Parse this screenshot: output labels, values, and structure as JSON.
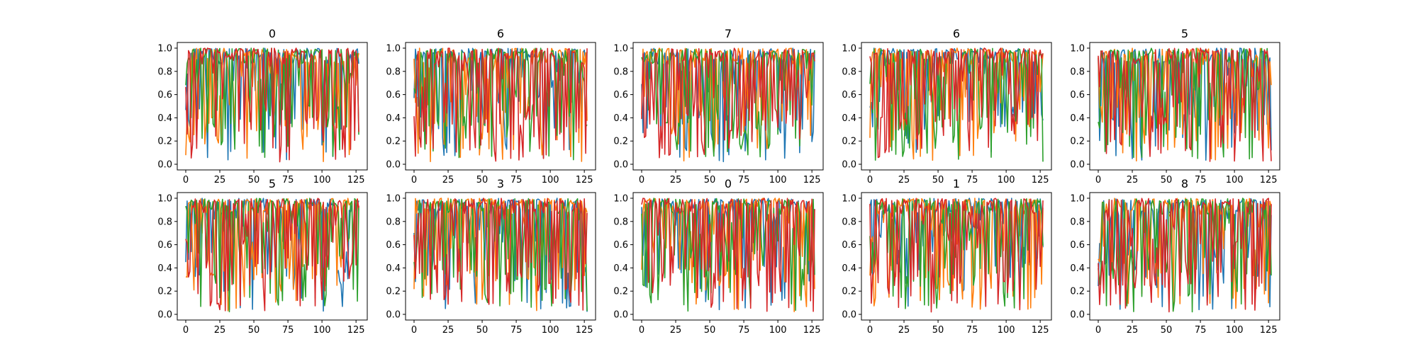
{
  "figure": {
    "layout": {
      "rows": 2,
      "cols": 5
    },
    "colors": [
      "#1f77b4",
      "#ff7f0e",
      "#2ca02c",
      "#d62728"
    ]
  },
  "chart_data": [
    {
      "type": "line",
      "title": "0",
      "xlim": [
        0,
        127
      ],
      "ylim": [
        0,
        1
      ],
      "xticks": [
        0,
        25,
        50,
        75,
        100,
        125
      ],
      "yticks": [
        0.0,
        0.2,
        0.4,
        0.6,
        0.8,
        1.0
      ],
      "grid": false,
      "seed": 11
    },
    {
      "type": "line",
      "title": "6",
      "xlim": [
        0,
        127
      ],
      "ylim": [
        0,
        1
      ],
      "xticks": [
        0,
        25,
        50,
        75,
        100,
        125
      ],
      "yticks": [
        0.0,
        0.2,
        0.4,
        0.6,
        0.8,
        1.0
      ],
      "grid": false,
      "seed": 23
    },
    {
      "type": "line",
      "title": "7",
      "xlim": [
        0,
        127
      ],
      "ylim": [
        0,
        1
      ],
      "xticks": [
        0,
        25,
        50,
        75,
        100,
        125
      ],
      "yticks": [
        0.0,
        0.2,
        0.4,
        0.6,
        0.8,
        1.0
      ],
      "grid": false,
      "seed": 37
    },
    {
      "type": "line",
      "title": "6",
      "xlim": [
        0,
        127
      ],
      "ylim": [
        0,
        1
      ],
      "xticks": [
        0,
        25,
        50,
        75,
        100,
        125
      ],
      "yticks": [
        0.0,
        0.2,
        0.4,
        0.6,
        0.8,
        1.0
      ],
      "grid": false,
      "seed": 41
    },
    {
      "type": "line",
      "title": "5",
      "xlim": [
        0,
        127
      ],
      "ylim": [
        0,
        1
      ],
      "xticks": [
        0,
        25,
        50,
        75,
        100,
        125
      ],
      "yticks": [
        0.0,
        0.2,
        0.4,
        0.6,
        0.8,
        1.0
      ],
      "grid": false,
      "seed": 53
    },
    {
      "type": "line",
      "title": "5",
      "xlim": [
        0,
        127
      ],
      "ylim": [
        0,
        1
      ],
      "xticks": [
        0,
        25,
        50,
        75,
        100,
        125
      ],
      "yticks": [
        0.0,
        0.2,
        0.4,
        0.6,
        0.8,
        1.0
      ],
      "grid": false,
      "seed": 67
    },
    {
      "type": "line",
      "title": "3",
      "xlim": [
        0,
        127
      ],
      "ylim": [
        0,
        1
      ],
      "xticks": [
        0,
        25,
        50,
        75,
        100,
        125
      ],
      "yticks": [
        0.0,
        0.2,
        0.4,
        0.6,
        0.8,
        1.0
      ],
      "grid": false,
      "seed": 71
    },
    {
      "type": "line",
      "title": "0",
      "xlim": [
        0,
        127
      ],
      "ylim": [
        0,
        1
      ],
      "xticks": [
        0,
        25,
        50,
        75,
        100,
        125
      ],
      "yticks": [
        0.0,
        0.2,
        0.4,
        0.6,
        0.8,
        1.0
      ],
      "grid": false,
      "seed": 83
    },
    {
      "type": "line",
      "title": "1",
      "xlim": [
        0,
        127
      ],
      "ylim": [
        0,
        1
      ],
      "xticks": [
        0,
        25,
        50,
        75,
        100,
        125
      ],
      "yticks": [
        0.0,
        0.2,
        0.4,
        0.6,
        0.8,
        1.0
      ],
      "grid": false,
      "seed": 97
    },
    {
      "type": "line",
      "title": "8",
      "xlim": [
        0,
        127
      ],
      "ylim": [
        0,
        1
      ],
      "xticks": [
        0,
        25,
        50,
        75,
        100,
        125
      ],
      "yticks": [
        0.0,
        0.2,
        0.4,
        0.6,
        0.8,
        1.0
      ],
      "grid": false,
      "seed": 101
    }
  ]
}
